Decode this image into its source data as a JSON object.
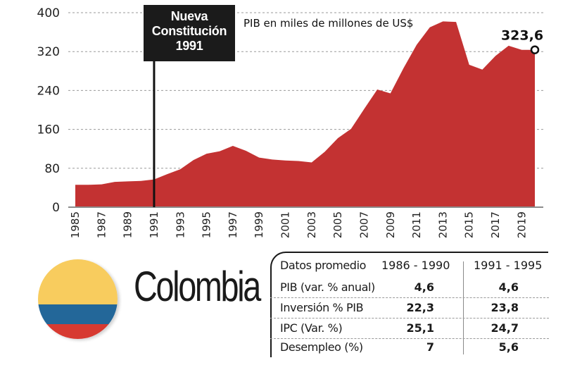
{
  "chart_data": {
    "type": "area",
    "title": "PIB en miles de millones de US$",
    "xlabel": "",
    "ylabel": "",
    "x": [
      1985,
      1986,
      1987,
      1988,
      1989,
      1990,
      1991,
      1992,
      1993,
      1994,
      1995,
      1996,
      1997,
      1998,
      1999,
      2000,
      2001,
      2002,
      2003,
      2004,
      2005,
      2006,
      2007,
      2008,
      2009,
      2010,
      2011,
      2012,
      2013,
      2014,
      2015,
      2016,
      2017,
      2018,
      2019,
      2020
    ],
    "values": [
      46,
      46,
      47,
      52,
      53,
      54,
      57,
      68,
      78,
      97,
      110,
      115,
      126,
      116,
      102,
      98,
      96,
      95,
      92,
      114,
      142,
      161,
      202,
      242,
      234,
      286,
      334,
      370,
      382,
      381,
      293,
      283,
      311,
      332,
      323.6,
      323.6
    ],
    "xticks": [
      "1985",
      "1987",
      "1989",
      "1991",
      "1993",
      "1995",
      "1997",
      "1999",
      "2001",
      "2003",
      "2005",
      "2007",
      "2009",
      "2011",
      "2013",
      "2015",
      "2017",
      "2019"
    ],
    "yticks": [
      "0",
      "80",
      "160",
      "240",
      "320",
      "400"
    ],
    "ylim": [
      0,
      400
    ],
    "grid": true,
    "color": "#c33232",
    "end_label": "323,6",
    "annotation": {
      "year": 1991,
      "lines": [
        "Nueva",
        "Constitución",
        "1991"
      ]
    }
  },
  "country": {
    "name": "Colombia",
    "flag_colors": [
      "#f8cc5e",
      "#236799",
      "#d73a31"
    ]
  },
  "table": {
    "header": [
      "Datos promedio",
      "1986 - 1990",
      "1991 - 1995"
    ],
    "rows": [
      [
        "PIB (var. % anual)",
        "4,6",
        "4,6"
      ],
      [
        "Inversión % PIB",
        "22,3",
        "23,8"
      ],
      [
        "IPC (Var. %)",
        "25,1",
        "24,7"
      ],
      [
        "Desempleo (%)",
        "7",
        "5,6"
      ]
    ]
  }
}
